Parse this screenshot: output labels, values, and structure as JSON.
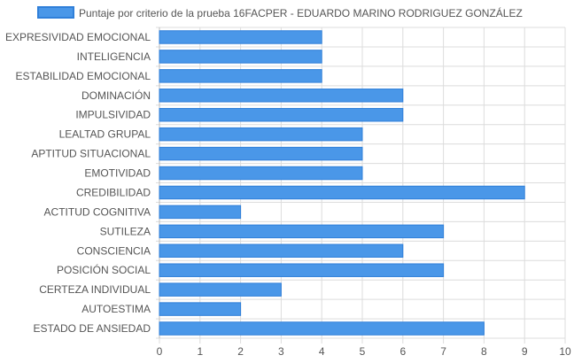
{
  "chart_data": {
    "type": "bar",
    "orientation": "horizontal",
    "categories": [
      "EXPRESIVIDAD EMOCIONAL",
      "INTELIGENCIA",
      "ESTABILIDAD EMOCIONAL",
      "DOMINACIÓN",
      "IMPULSIVIDAD",
      "LEALTAD GRUPAL",
      "APTITUD SITUACIONAL",
      "EMOTIVIDAD",
      "CREDIBILIDAD",
      "ACTITUD COGNITIVA",
      "SUTILEZA",
      "CONSCIENCIA",
      "POSICIÓN SOCIAL",
      "CERTEZA INDIVIDUAL",
      "AUTOESTIMA",
      "ESTADO DE ANSIEDAD"
    ],
    "series": [
      {
        "name": "Puntaje por criterio de la prueba 16FACPER - EDUARDO MARINO RODRIGUEZ GONZÁLEZ",
        "values": [
          4,
          4,
          4,
          6,
          6,
          5,
          5,
          5,
          9,
          2,
          7,
          6,
          7,
          3,
          2,
          8
        ],
        "color": "#4a97e8",
        "border_color": "#2f7fd9"
      }
    ],
    "xlim": [
      0,
      10
    ],
    "xticks": [
      "0",
      "1",
      "2",
      "3",
      "4",
      "5",
      "6",
      "7",
      "8",
      "9",
      "10"
    ],
    "legend_position": "top",
    "grid": true,
    "grid_color": "#dcdcdc"
  }
}
